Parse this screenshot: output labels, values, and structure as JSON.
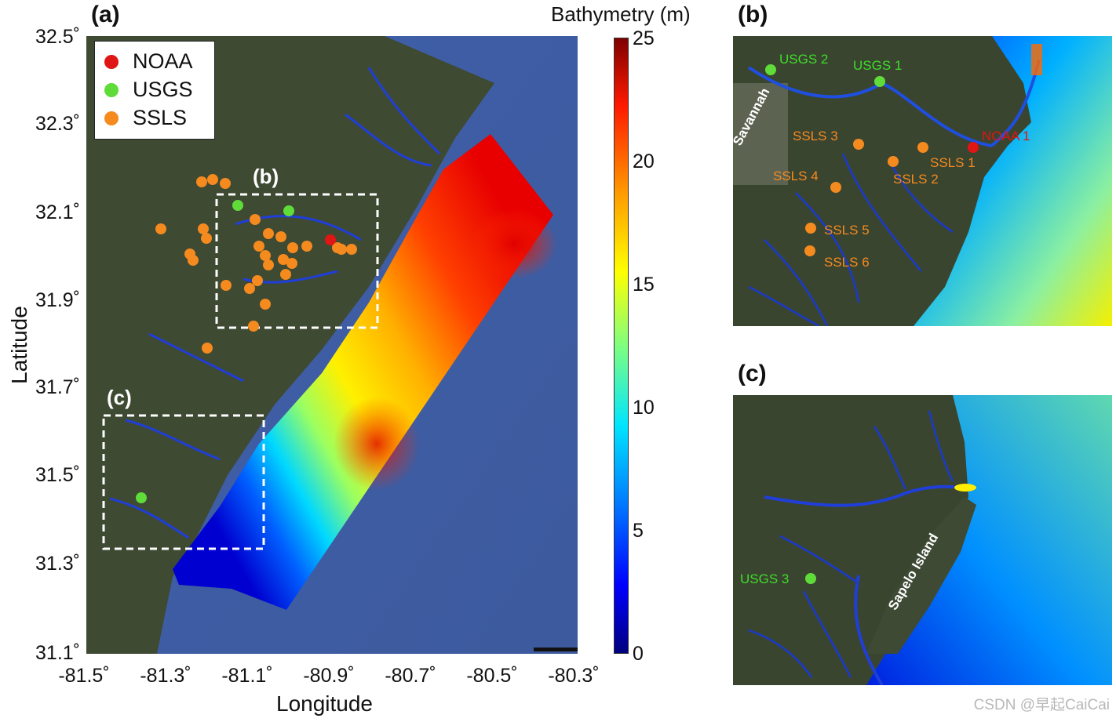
{
  "panels": {
    "a": "(a)",
    "b": "(b)",
    "c": "(c)",
    "box_b": "(b)",
    "box_c": "(c)"
  },
  "axes": {
    "xlabel": "Longitude",
    "ylabel": "Latitude",
    "x_ticks": [
      "-81.5˚",
      "-81.3˚",
      "-81.1˚",
      "-80.9˚",
      "-80.7˚",
      "-80.5˚",
      "-80.3˚"
    ],
    "y_ticks": [
      "32.5˚",
      "32.3˚",
      "32.1˚",
      "31.9˚",
      "31.7˚",
      "31.5˚",
      "31.3˚",
      "31.1˚"
    ]
  },
  "colorbar": {
    "title": "Bathymetry (m)",
    "ticks": [
      "25",
      "20",
      "15",
      "10",
      "5",
      "0"
    ],
    "range": [
      0,
      25
    ],
    "colormap": [
      "#00007f",
      "#0000ff",
      "#0080ff",
      "#00e5ff",
      "#7fff7f",
      "#ffff00",
      "#ff9900",
      "#ff1a00",
      "#7f0000"
    ]
  },
  "legend": {
    "items": [
      {
        "label": "NOAA",
        "color": "#e01515"
      },
      {
        "label": "USGS",
        "color": "#5fdc3a"
      },
      {
        "label": "SSLS",
        "color": "#f58a1f"
      }
    ]
  },
  "panel_b_labels": {
    "usgs2": "USGS 2",
    "usgs1": "USGS 1",
    "noaa1": "NOAA 1",
    "ssls1": "SSLS 1",
    "ssls2": "SSLS 2",
    "ssls3": "SSLS 3",
    "ssls4": "SSLS 4",
    "ssls5": "SSLS 5",
    "ssls6": "SSLS 6",
    "city": "Savannah"
  },
  "panel_c_labels": {
    "usgs3": "USGS 3",
    "island": "Sapelo Island"
  },
  "watermark": "CSDN @早起CaiCai"
}
